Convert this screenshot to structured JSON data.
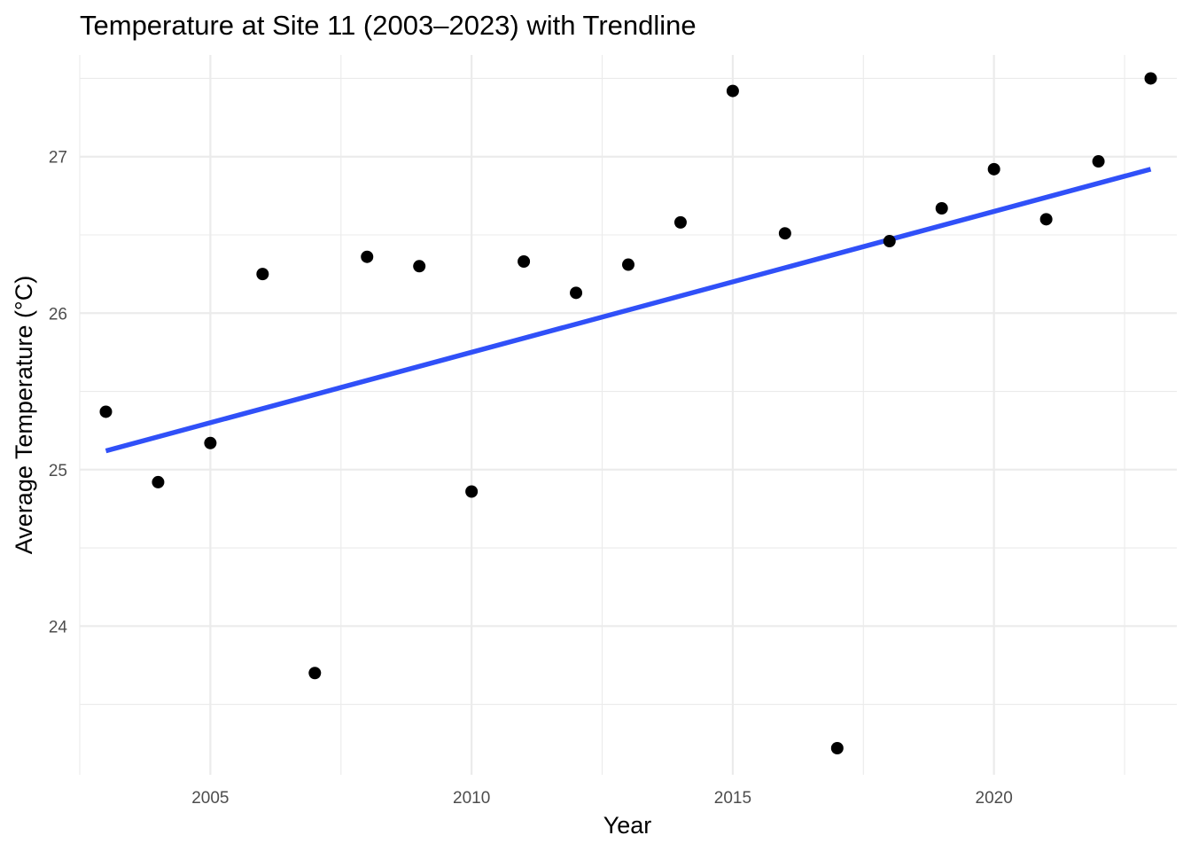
{
  "chart_data": {
    "type": "scatter",
    "title": "Temperature at Site 11 (2003–2023) with Trendline",
    "xlabel": "Year",
    "ylabel": "Average Temperature (°C)",
    "xlim": [
      2002.5,
      2023.5
    ],
    "ylim": [
      23.05,
      27.65
    ],
    "x_ticks": [
      2005,
      2010,
      2015,
      2020
    ],
    "y_ticks": [
      24,
      25,
      26,
      27
    ],
    "grid": true,
    "legend": "none",
    "points": [
      {
        "x": 2003,
        "y": 25.37
      },
      {
        "x": 2004,
        "y": 24.92
      },
      {
        "x": 2005,
        "y": 25.17
      },
      {
        "x": 2006,
        "y": 26.25
      },
      {
        "x": 2007,
        "y": 23.7
      },
      {
        "x": 2008,
        "y": 26.36
      },
      {
        "x": 2009,
        "y": 26.3
      },
      {
        "x": 2010,
        "y": 24.86
      },
      {
        "x": 2011,
        "y": 26.33
      },
      {
        "x": 2012,
        "y": 26.13
      },
      {
        "x": 2013,
        "y": 26.31
      },
      {
        "x": 2014,
        "y": 26.58
      },
      {
        "x": 2015,
        "y": 27.42
      },
      {
        "x": 2016,
        "y": 26.51
      },
      {
        "x": 2017,
        "y": 23.22
      },
      {
        "x": 2018,
        "y": 26.46
      },
      {
        "x": 2019,
        "y": 26.67
      },
      {
        "x": 2020,
        "y": 26.92
      },
      {
        "x": 2021,
        "y": 26.6
      },
      {
        "x": 2022,
        "y": 26.97
      },
      {
        "x": 2023,
        "y": 27.5
      }
    ],
    "trendline": {
      "type": "linear",
      "start": {
        "x": 2003,
        "y": 25.12
      },
      "end": {
        "x": 2023,
        "y": 26.92
      }
    },
    "colors": {
      "points": "#000000",
      "trendline": "#3050f8",
      "grid": "#ebebeb",
      "tick_text": "#4d4d4d"
    }
  }
}
